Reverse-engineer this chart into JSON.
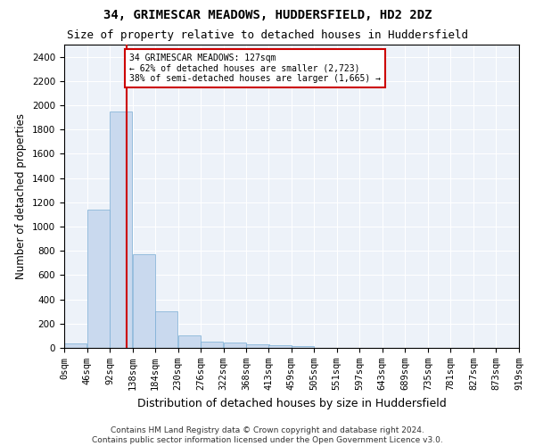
{
  "title": "34, GRIMESCAR MEADOWS, HUDDERSFIELD, HD2 2DZ",
  "subtitle": "Size of property relative to detached houses in Huddersfield",
  "xlabel": "Distribution of detached houses by size in Huddersfield",
  "ylabel": "Number of detached properties",
  "bin_edges": [
    0,
    46,
    92,
    138,
    184,
    230,
    276,
    322,
    368,
    413,
    459,
    505,
    551,
    597,
    643,
    689,
    735,
    781,
    827,
    873,
    919
  ],
  "bar_heights": [
    35,
    1140,
    1950,
    775,
    300,
    100,
    50,
    42,
    27,
    20,
    13,
    0,
    0,
    0,
    0,
    0,
    0,
    0,
    0,
    0
  ],
  "bar_color": "#c9d9ee",
  "bar_edge_color": "#7aadd4",
  "property_size": 127,
  "vline_color": "#cc0000",
  "annotation_text": "34 GRIMESCAR MEADOWS: 127sqm\n← 62% of detached houses are smaller (2,723)\n38% of semi-detached houses are larger (1,665) →",
  "annotation_box_color": "#cc0000",
  "ylim": [
    0,
    2500
  ],
  "yticks": [
    0,
    200,
    400,
    600,
    800,
    1000,
    1200,
    1400,
    1600,
    1800,
    2000,
    2200,
    2400
  ],
  "footnote": "Contains HM Land Registry data © Crown copyright and database right 2024.\nContains public sector information licensed under the Open Government Licence v3.0.",
  "bg_color": "#edf2f9",
  "grid_color": "#ffffff",
  "title_fontsize": 10,
  "subtitle_fontsize": 9,
  "axis_label_fontsize": 8.5,
  "tick_fontsize": 7.5,
  "footnote_fontsize": 6.5
}
